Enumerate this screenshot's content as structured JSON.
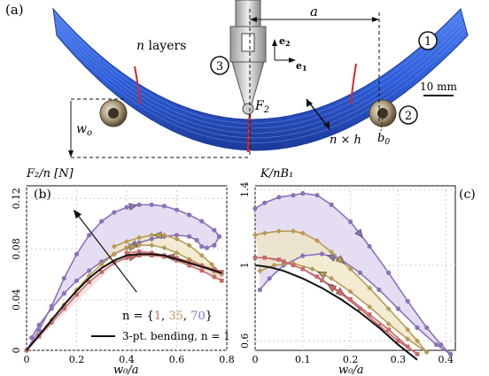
{
  "figure": {
    "panel_a": {
      "label": "(a)",
      "layers_text": "n layers",
      "distance_label": "a",
      "force_label": "F",
      "force_sub": "2",
      "thickness_label": "n × h",
      "deflection_label": "w",
      "deflection_sub": "o",
      "roller_label": "b",
      "roller_sub": "0",
      "scale_text": "10 mm",
      "axis_e2": "e",
      "axis_e2_sub": "2",
      "axis_e1": "e",
      "axis_e1_sub": "1",
      "markers": [
        "1",
        "2",
        "3"
      ],
      "colors": {
        "stack": "#2f5ed8",
        "stack_dark": "#1c3b9a",
        "seam": "#d12a2a",
        "roller": "#9a8a5a"
      }
    },
    "panel_b": {
      "label": "(b)",
      "ylabel": "F₂/n [N]",
      "xlabel": "w₀/a",
      "legend_prefix": "n = {",
      "legend_n1": "1",
      "legend_sep1": ", ",
      "legend_n2": "35",
      "legend_sep2": ", ",
      "legend_n3": "70",
      "legend_suffix": "}",
      "legend_line": "3-pt. bending, n = 1"
    },
    "panel_c": {
      "label": "(c)",
      "ylabel": "K/nB₁",
      "xlabel": "w₀/a"
    }
  },
  "chart_data": [
    {
      "type": "line",
      "panel": "b",
      "xlim": [
        0,
        0.8
      ],
      "ylim": [
        0,
        0.13
      ],
      "xticks": [
        "0",
        "0.2",
        "0.4",
        "0.6",
        "0.8"
      ],
      "xtick_values": [
        0,
        0.2,
        0.4,
        0.6,
        0.8
      ],
      "yticks": [
        "0",
        "0.04",
        "0.08",
        "0.12"
      ],
      "ytick_values": [
        0,
        0.04,
        0.08,
        0.12
      ],
      "series": [
        {
          "name": "n = 1",
          "color": "#c46a6a",
          "loading_x": [
            0,
            0.05,
            0.1,
            0.15,
            0.2,
            0.25,
            0.3,
            0.35,
            0.4,
            0.45,
            0.5,
            0.55,
            0.6,
            0.65,
            0.7,
            0.75,
            0.78
          ],
          "loading_y": [
            0,
            0.011,
            0.022,
            0.033,
            0.044,
            0.054,
            0.062,
            0.069,
            0.073,
            0.075,
            0.075,
            0.074,
            0.071,
            0.067,
            0.063,
            0.058,
            0.055
          ],
          "unloading_x": [
            0.78,
            0.75,
            0.7,
            0.65,
            0.6,
            0.55,
            0.5,
            0.45,
            0.4
          ],
          "unloading_y": [
            0.062,
            0.064,
            0.067,
            0.07,
            0.073,
            0.075,
            0.077,
            0.078,
            0.077
          ]
        },
        {
          "name": "n = 35",
          "color": "#b89a55",
          "loading_x": [
            0,
            0.05,
            0.1,
            0.15,
            0.2,
            0.25,
            0.3,
            0.35,
            0.4,
            0.45,
            0.5,
            0.55,
            0.6,
            0.65,
            0.7,
            0.75,
            0.78
          ],
          "loading_y": [
            0,
            0.012,
            0.024,
            0.036,
            0.048,
            0.059,
            0.068,
            0.076,
            0.081,
            0.083,
            0.083,
            0.081,
            0.077,
            0.072,
            0.067,
            0.062,
            0.06
          ],
          "unloading_x": [
            0.78,
            0.74,
            0.7,
            0.65,
            0.6,
            0.55,
            0.5,
            0.45,
            0.4,
            0.35
          ],
          "unloading_y": [
            0.06,
            0.068,
            0.075,
            0.083,
            0.088,
            0.091,
            0.091,
            0.089,
            0.086,
            0.082
          ]
        },
        {
          "name": "n = 70",
          "color": "#8a72b8",
          "loading_x": [
            0,
            0.05,
            0.1,
            0.15,
            0.2,
            0.25,
            0.3,
            0.35,
            0.4,
            0.45,
            0.5,
            0.55,
            0.6,
            0.65,
            0.7,
            0.75,
            0.77
          ],
          "loading_y": [
            0,
            0.016,
            0.035,
            0.057,
            0.076,
            0.091,
            0.102,
            0.109,
            0.113,
            0.115,
            0.115,
            0.114,
            0.111,
            0.107,
            0.102,
            0.095,
            0.09
          ],
          "unloading_x": [
            0.77,
            0.75,
            0.72,
            0.7,
            0.68,
            0.65,
            0.6,
            0.55,
            0.5,
            0.45,
            0.4,
            0.35,
            0.3,
            0.25,
            0.2,
            0.15,
            0.1,
            0.05,
            0.02
          ],
          "unloading_y": [
            0.09,
            0.083,
            0.081,
            0.082,
            0.087,
            0.09,
            0.091,
            0.09,
            0.088,
            0.085,
            0.081,
            0.076,
            0.07,
            0.063,
            0.055,
            0.045,
            0.033,
            0.02,
            0.01
          ]
        },
        {
          "name": "3-pt. bending, n = 1",
          "color": "#111111",
          "x": [
            0,
            0.05,
            0.1,
            0.15,
            0.2,
            0.25,
            0.3,
            0.35,
            0.4,
            0.45,
            0.5,
            0.55,
            0.6,
            0.65,
            0.7,
            0.75,
            0.78
          ],
          "y": [
            0,
            0.012,
            0.024,
            0.036,
            0.047,
            0.057,
            0.065,
            0.071,
            0.075,
            0.076,
            0.076,
            0.075,
            0.072,
            0.069,
            0.066,
            0.063,
            0.061
          ]
        }
      ]
    },
    {
      "type": "line",
      "panel": "c",
      "xlim": [
        0,
        0.42
      ],
      "ylim": [
        0.55,
        1.42
      ],
      "xticks": [
        "0",
        "0.1",
        "0.2",
        "0.3",
        "0.4"
      ],
      "xtick_values": [
        0,
        0.1,
        0.2,
        0.3,
        0.4
      ],
      "yticks": [
        "0.6",
        "1",
        "1.4"
      ],
      "ytick_values": [
        0.6,
        1.0,
        1.4
      ],
      "series": [
        {
          "name": "n = 1",
          "color": "#c46a6a",
          "loading_x": [
            0,
            0.02,
            0.05,
            0.08,
            0.1,
            0.13,
            0.16,
            0.2,
            0.24,
            0.28,
            0.32,
            0.34
          ],
          "loading_y": [
            1.04,
            1.04,
            1.03,
            1.0,
            0.98,
            0.94,
            0.89,
            0.82,
            0.74,
            0.66,
            0.57,
            0.53
          ],
          "unloading_x": [
            0.34,
            0.3,
            0.26,
            0.22,
            0.18,
            0.14,
            0.1,
            0.06,
            0.02
          ],
          "unloading_y": [
            0.53,
            0.6,
            0.68,
            0.77,
            0.85,
            0.92,
            0.98,
            1.02,
            1.04
          ]
        },
        {
          "name": "n = 35",
          "color": "#b89a55",
          "loading_x": [
            0,
            0.02,
            0.05,
            0.08,
            0.1,
            0.13,
            0.16,
            0.2,
            0.24,
            0.28,
            0.32,
            0.34,
            0.36
          ],
          "loading_y": [
            1.16,
            1.17,
            1.18,
            1.18,
            1.17,
            1.13,
            1.07,
            0.98,
            0.88,
            0.77,
            0.66,
            0.6,
            0.54
          ],
          "unloading_x": [
            0.36,
            0.32,
            0.28,
            0.24,
            0.2,
            0.16,
            0.12,
            0.08,
            0.04,
            0.01
          ],
          "unloading_y": [
            0.54,
            0.61,
            0.69,
            0.78,
            0.86,
            0.93,
            0.98,
            1.01,
            1.0,
            0.97
          ]
        },
        {
          "name": "n = 70",
          "color": "#8a72b8",
          "loading_x": [
            0,
            0.02,
            0.05,
            0.08,
            0.1,
            0.13,
            0.16,
            0.2,
            0.24,
            0.28,
            0.32,
            0.36,
            0.39,
            0.41
          ],
          "loading_y": [
            1.3,
            1.33,
            1.36,
            1.37,
            1.38,
            1.37,
            1.32,
            1.23,
            1.1,
            0.96,
            0.81,
            0.67,
            0.58,
            0.53
          ],
          "unloading_x": [
            0.41,
            0.38,
            0.34,
            0.3,
            0.26,
            0.22,
            0.18,
            0.14,
            0.1,
            0.06,
            0.03,
            0.01
          ],
          "unloading_y": [
            0.53,
            0.58,
            0.67,
            0.77,
            0.87,
            0.96,
            1.03,
            1.06,
            1.05,
            1.0,
            0.93,
            0.87
          ]
        },
        {
          "name": "3-pt. bending, n = 1",
          "color": "#111111",
          "x": [
            0,
            0.03,
            0.06,
            0.1,
            0.14,
            0.18,
            0.22,
            0.26,
            0.3,
            0.34
          ],
          "y": [
            1.0,
            0.99,
            0.97,
            0.93,
            0.88,
            0.82,
            0.75,
            0.67,
            0.58,
            0.5
          ]
        }
      ]
    }
  ]
}
